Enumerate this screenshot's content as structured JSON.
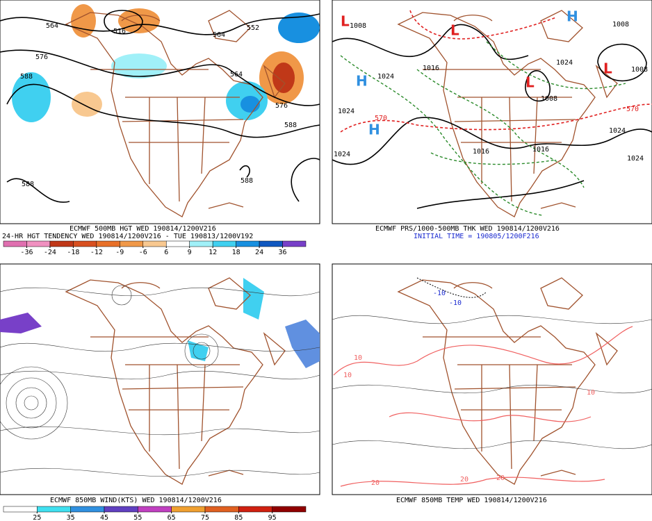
{
  "panels": [
    {
      "captions": [
        "ECMWF 500MB HGT WED 190814/1200V216",
        "24-HR HGT TENDENCY WED 190814/1200V216 - TUE 190813/1200V192"
      ],
      "colorbar": {
        "ticks": [
          -36,
          -24,
          -18,
          -12,
          -9,
          -6,
          6,
          9,
          12,
          18,
          24,
          36
        ],
        "colors": [
          "#e070b0",
          "#f090c0",
          "#c03818",
          "#d85020",
          "#e87028",
          "#f09848",
          "#f8c890",
          "#ffffff",
          "#a0f0f8",
          "#40d0f0",
          "#1890e0",
          "#1058c0",
          "#7840c8"
        ]
      },
      "map_labels": [
        "564",
        "516",
        "552",
        "564",
        "576",
        "588",
        "564",
        "576",
        "588",
        "588",
        "588"
      ]
    },
    {
      "captions": [
        "ECMWF PRS/1000-500MB THK WED 190814/1200V216",
        "INITIAL TIME = 190805/1200F216"
      ],
      "map_labels": [
        "1008",
        "1024",
        "1016",
        "1024",
        "1008",
        "1008",
        "1008",
        "1016",
        "1016",
        "1024",
        "1024",
        "1024",
        "1024",
        "570",
        "570",
        "L",
        "L",
        "L",
        "L",
        "H",
        "H",
        "H"
      ]
    },
    {
      "captions": [
        "ECMWF 850MB WIND(KTS) WED 190814/1200V216"
      ],
      "colorbar": {
        "ticks": [
          25,
          35,
          45,
          55,
          65,
          75,
          85,
          95
        ],
        "colors": [
          "#ffffff",
          "#40e0f0",
          "#3090e0",
          "#6040c0",
          "#c040c0",
          "#f0a030",
          "#e06020",
          "#d02010",
          "#900000"
        ]
      }
    },
    {
      "captions": [
        "ECMWF 850MB TEMP WED 190814/1200V216"
      ],
      "map_labels": [
        "-10",
        "-10",
        "10",
        "10",
        "20",
        "20",
        "20",
        "10"
      ]
    }
  ]
}
